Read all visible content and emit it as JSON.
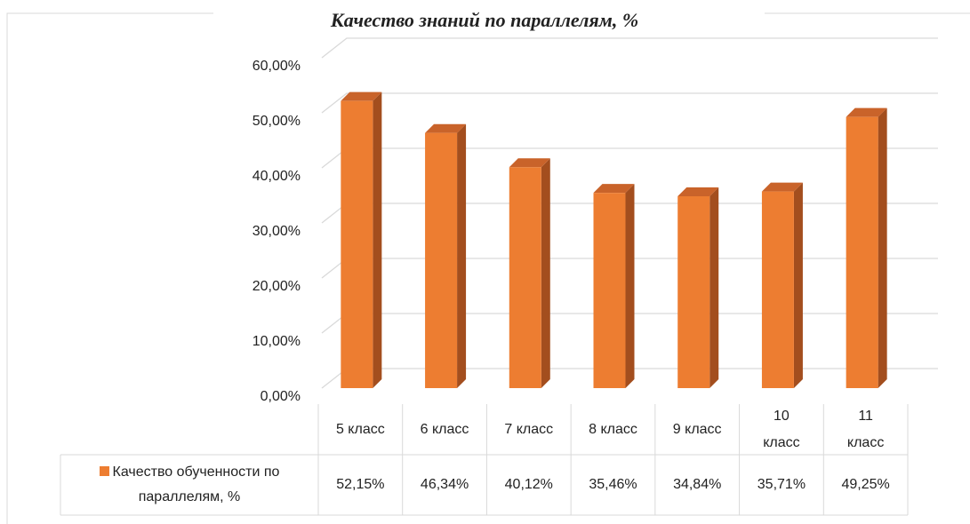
{
  "chart_data": {
    "type": "bar3d",
    "title": "Качество знаний по параллелям, %",
    "categories": [
      "5 класс",
      "6 класс",
      "7 класс",
      "8 класс",
      "9 класс",
      "10 класс",
      "11 класс"
    ],
    "series": [
      {
        "name": "Качество обученности по параллелям, %",
        "color": "#ED7D31",
        "values": [
          52.15,
          46.34,
          40.12,
          35.46,
          34.84,
          35.71,
          49.25
        ],
        "value_labels": [
          "52,15%",
          "46,34%",
          "40,12%",
          "35,46%",
          "34,84%",
          "35,71%",
          "49,25%"
        ]
      }
    ],
    "ylim": [
      0,
      60
    ],
    "yticks": [
      {
        "value": 0,
        "label": "0,00%"
      },
      {
        "value": 10,
        "label": "10,00%"
      },
      {
        "value": 20,
        "label": "20,00%"
      },
      {
        "value": 30,
        "label": "30,00%"
      },
      {
        "value": 40,
        "label": "40,00%"
      },
      {
        "value": 50,
        "label": "50,00%"
      },
      {
        "value": 60,
        "label": "60,00%"
      }
    ],
    "grid": true
  }
}
